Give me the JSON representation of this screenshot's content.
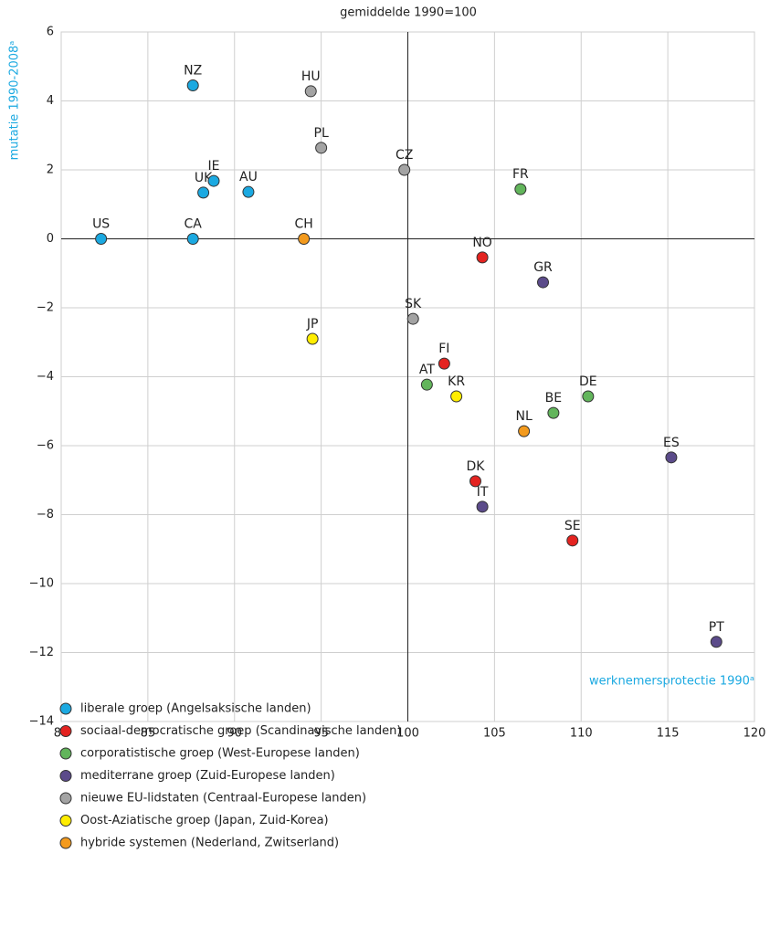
{
  "chart_data": {
    "type": "scatter",
    "title": "gemiddelde 1990=100",
    "ylabel": "mutatie 1990-2008ᵃ",
    "xlabel": "werknemersprotectie 1990ᵃ",
    "xlim": [
      80,
      120
    ],
    "xticks": [
      80,
      85,
      90,
      95,
      100,
      105,
      110,
      115,
      120
    ],
    "ylim": [
      -14,
      6
    ],
    "yticks": [
      {
        "value": -14,
        "label": "−14"
      },
      {
        "value": -12,
        "label": "−12"
      },
      {
        "value": -10,
        "label": "−10"
      },
      {
        "value": -8,
        "label": "−8"
      },
      {
        "value": -6,
        "label": "−6"
      },
      {
        "value": -4,
        "label": "−4"
      },
      {
        "value": -2,
        "label": "−2"
      },
      0,
      2,
      4,
      6
    ],
    "grid": true,
    "series": [
      {
        "name": "liberale groep (Angelsaksische landen)",
        "color": "#1ba9e1",
        "labels": [
          "US",
          "CA",
          "NZ",
          "UK",
          "IE",
          "AU"
        ],
        "x": [
          82.3,
          87.6,
          87.6,
          88.2,
          88.8,
          90.8
        ],
        "values": [
          0,
          0,
          4.45,
          1.34,
          1.68,
          1.36
        ]
      },
      {
        "name": "sociaal-democratische groep (Scandinavische landen)",
        "color": "#e42320",
        "labels": [
          "NO",
          "FI",
          "DK",
          "SE"
        ],
        "x": [
          104.3,
          102.1,
          103.9,
          109.5
        ],
        "values": [
          -0.54,
          -3.62,
          -7.03,
          -8.75
        ]
      },
      {
        "name": "corporatistische groep (West-Europese landen)",
        "color": "#62b55b",
        "labels": [
          "FR",
          "AT",
          "DE",
          "BE"
        ],
        "x": [
          106.5,
          101.1,
          110.4,
          108.4
        ],
        "values": [
          1.44,
          -4.23,
          -4.57,
          -5.05
        ]
      },
      {
        "name": "mediterrane groep (Zuid-Europese landen)",
        "color": "#5b4b8a",
        "labels": [
          "GR",
          "ES",
          "IT",
          "PT"
        ],
        "x": [
          107.8,
          115.2,
          104.3,
          117.8
        ],
        "values": [
          -1.26,
          -6.34,
          -7.77,
          -11.69
        ]
      },
      {
        "name": "nieuwe EU-lidstaten (Centraal-Europese landen)",
        "color": "#a3a3a3",
        "labels": [
          "HU",
          "PL",
          "CZ",
          "SK"
        ],
        "x": [
          94.4,
          95.0,
          99.8,
          100.3
        ],
        "values": [
          4.28,
          2.64,
          2.0,
          -2.32
        ]
      },
      {
        "name": "Oost-Aziatische groep (Japan, Zuid-Korea)",
        "color": "#ffed00",
        "labels": [
          "JP",
          "KR"
        ],
        "x": [
          94.5,
          102.8
        ],
        "values": [
          -2.9,
          -4.57
        ]
      },
      {
        "name": "hybride systemen (Nederland, Zwitserland)",
        "color": "#f39a1d",
        "labels": [
          "NL",
          "CH"
        ],
        "x": [
          106.7,
          94.0
        ],
        "values": [
          -5.58,
          0
        ]
      }
    ]
  }
}
